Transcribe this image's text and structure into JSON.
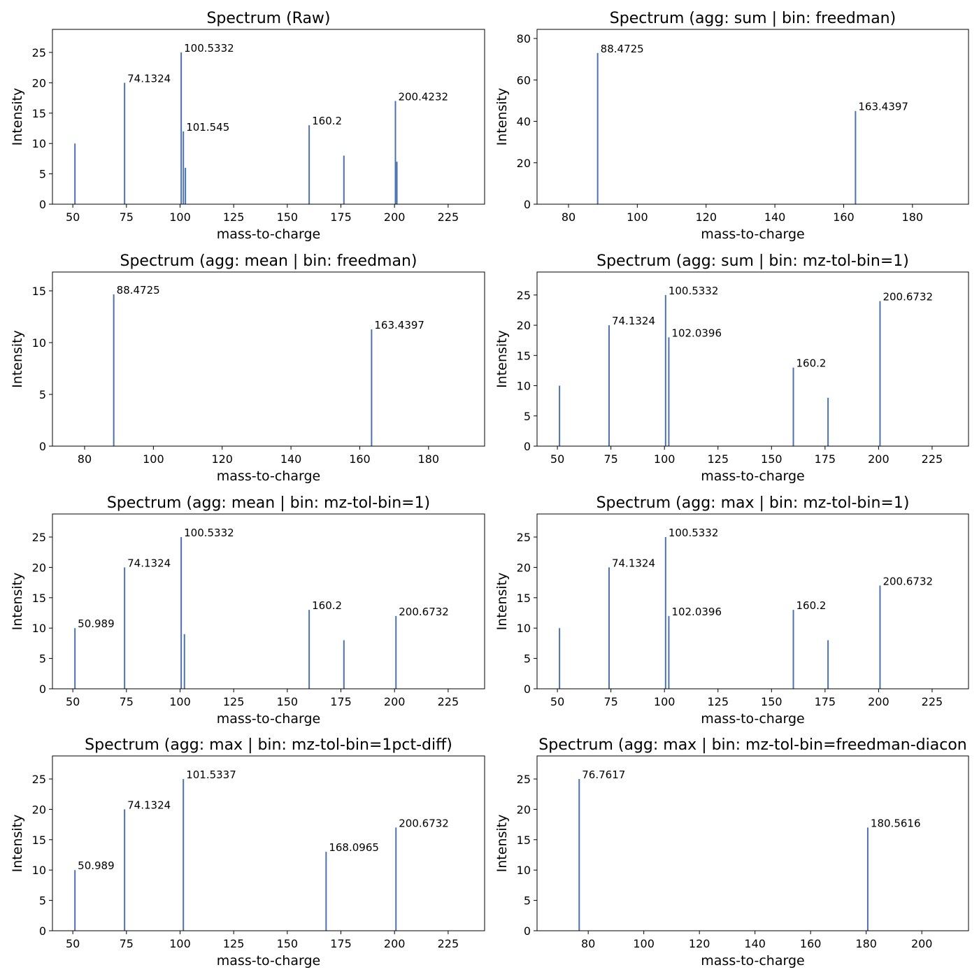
{
  "chart_data": [
    {
      "type": "stem",
      "title": "Spectrum (Raw)",
      "xlabel": "mass-to-charge",
      "ylabel": "Intensity",
      "color": "#4c72b0",
      "x": [
        50.989,
        74.1324,
        100.5332,
        101.545,
        102.5,
        160.2,
        176.4,
        200.4232,
        201.1
      ],
      "values": [
        10,
        20,
        25,
        12,
        6,
        13,
        8,
        17,
        7
      ],
      "peak_labels": [
        null,
        "74.1324",
        "100.5332",
        "101.545",
        null,
        "160.2",
        null,
        "200.4232",
        null
      ],
      "xlim": [
        40.5,
        242
      ],
      "ylim": [
        0,
        28.8
      ],
      "xticks": [
        50,
        75,
        100,
        125,
        150,
        175,
        200,
        225
      ],
      "yticks": [
        0,
        5,
        10,
        15,
        20,
        25
      ]
    },
    {
      "type": "stem",
      "title": "Spectrum (agg: sum | bin: freedman)",
      "xlabel": "mass-to-charge",
      "ylabel": "Intensity",
      "color": "#4c72b0",
      "x": [
        88.4725,
        163.4397
      ],
      "values": [
        73,
        45
      ],
      "peak_labels": [
        "88.4725",
        "163.4397"
      ],
      "xlim": [
        70.85,
        196.3
      ],
      "ylim": [
        0,
        84.4
      ],
      "xticks": [
        80,
        100,
        120,
        140,
        160,
        180
      ],
      "yticks": [
        0,
        20,
        40,
        60,
        80
      ]
    },
    {
      "type": "stem",
      "title": "Spectrum (agg: mean | bin: freedman)",
      "xlabel": "mass-to-charge",
      "ylabel": "Intensity",
      "color": "#4c72b0",
      "x": [
        88.4725,
        163.4397
      ],
      "values": [
        14.66,
        11.28
      ],
      "peak_labels": [
        "88.4725",
        "163.4397"
      ],
      "xlim": [
        70.65,
        196.3
      ],
      "ylim": [
        0,
        16.82
      ],
      "xticks": [
        80,
        100,
        120,
        140,
        160,
        180
      ],
      "yticks": [
        0,
        5,
        10,
        15
      ]
    },
    {
      "type": "stem",
      "title": "Spectrum (agg: sum | bin: mz-tol-bin=1)",
      "xlabel": "mass-to-charge",
      "ylabel": "Intensity",
      "color": "#4c72b0",
      "x": [
        50.989,
        74.1324,
        100.5332,
        102.0396,
        160.2,
        176.4,
        200.6732
      ],
      "values": [
        10,
        20,
        25,
        18,
        13,
        8,
        24
      ],
      "peak_labels": [
        null,
        "74.1324",
        "100.5332",
        "102.0396",
        "160.2",
        null,
        "200.6732"
      ],
      "xlim": [
        40.5,
        242
      ],
      "ylim": [
        0,
        28.8
      ],
      "xticks": [
        50,
        75,
        100,
        125,
        150,
        175,
        200,
        225
      ],
      "yticks": [
        0,
        5,
        10,
        15,
        20,
        25
      ]
    },
    {
      "type": "stem",
      "title": "Spectrum (agg: mean | bin: mz-tol-bin=1)",
      "xlabel": "mass-to-charge",
      "ylabel": "Intensity",
      "color": "#4c72b0",
      "x": [
        50.989,
        74.1324,
        100.5332,
        102.0396,
        160.2,
        176.4,
        200.6732
      ],
      "values": [
        10,
        20,
        25,
        9,
        13,
        8,
        12
      ],
      "peak_labels": [
        "50.989",
        "74.1324",
        "100.5332",
        null,
        "160.2",
        null,
        "200.6732"
      ],
      "xlim": [
        40.5,
        242
      ],
      "ylim": [
        0,
        28.8
      ],
      "xticks": [
        50,
        75,
        100,
        125,
        150,
        175,
        200,
        225
      ],
      "yticks": [
        0,
        5,
        10,
        15,
        20,
        25
      ]
    },
    {
      "type": "stem",
      "title": "Spectrum (agg: max | bin: mz-tol-bin=1)",
      "xlabel": "mass-to-charge",
      "ylabel": "Intensity",
      "color": "#4c72b0",
      "x": [
        50.989,
        74.1324,
        100.5332,
        102.0396,
        160.2,
        176.4,
        200.6732
      ],
      "values": [
        10,
        20,
        25,
        12,
        13,
        8,
        17
      ],
      "peak_labels": [
        null,
        "74.1324",
        "100.5332",
        "102.0396",
        "160.2",
        null,
        "200.6732"
      ],
      "xlim": [
        40.5,
        242
      ],
      "ylim": [
        0,
        28.8
      ],
      "xticks": [
        50,
        75,
        100,
        125,
        150,
        175,
        200,
        225
      ],
      "yticks": [
        0,
        5,
        10,
        15,
        20,
        25
      ]
    },
    {
      "type": "stem",
      "title": "Spectrum (agg: max | bin: mz-tol-bin=1pct-diff)",
      "xlabel": "mass-to-charge",
      "ylabel": "Intensity",
      "color": "#4c72b0",
      "x": [
        50.989,
        74.1324,
        101.5337,
        168.0965,
        200.6732
      ],
      "values": [
        10,
        20,
        25,
        13,
        17
      ],
      "peak_labels": [
        "50.989",
        "74.1324",
        "101.5337",
        "168.0965",
        "200.6732"
      ],
      "xlim": [
        40.5,
        242
      ],
      "ylim": [
        0,
        28.8
      ],
      "xticks": [
        50,
        75,
        100,
        125,
        150,
        175,
        200,
        225
      ],
      "yticks": [
        0,
        5,
        10,
        15,
        20,
        25
      ]
    },
    {
      "type": "stem",
      "title": "Spectrum (agg: max | bin: mz-tol-bin=freedman-diacon",
      "xlabel": "mass-to-charge",
      "ylabel": "Intensity",
      "color": "#4c72b0",
      "x": [
        76.7617,
        180.5616
      ],
      "values": [
        25,
        17
      ],
      "peak_labels": [
        "76.7617",
        "180.5616"
      ],
      "xlim": [
        61.6,
        216.8
      ],
      "ylim": [
        0,
        28.8
      ],
      "xticks": [
        80,
        100,
        120,
        140,
        160,
        180,
        200
      ],
      "yticks": [
        0,
        5,
        10,
        15,
        20,
        25
      ]
    }
  ]
}
